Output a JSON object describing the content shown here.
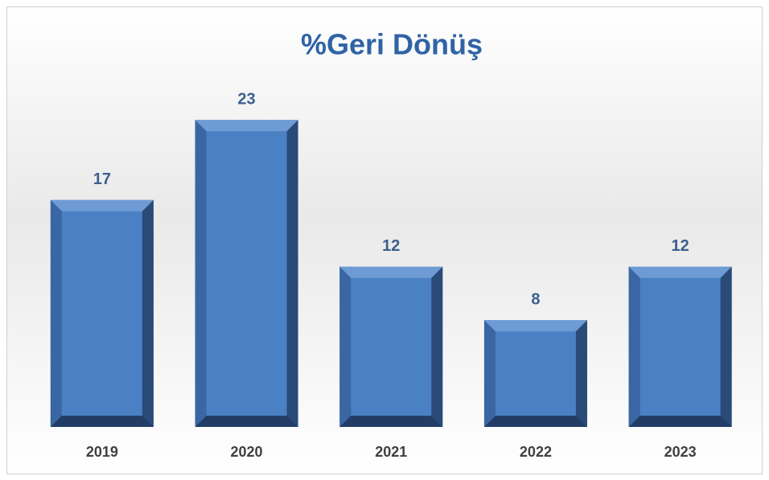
{
  "chart_data": {
    "type": "bar",
    "title": "%Geri Dönüş",
    "categories": [
      "2019",
      "2020",
      "2021",
      "2022",
      "2023"
    ],
    "values": [
      17,
      23,
      12,
      8,
      12
    ],
    "color": "#4a80c4"
  }
}
